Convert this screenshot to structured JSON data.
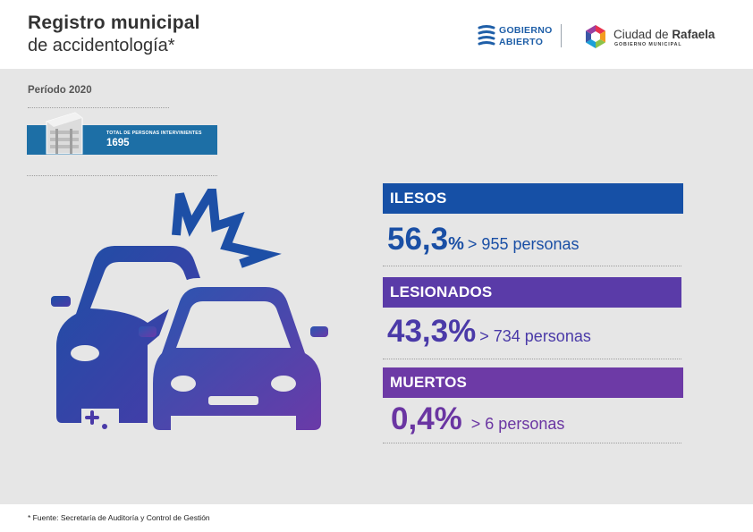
{
  "header": {
    "title_line1": "Registro municipal",
    "title_line2": "de accidentología*",
    "gobierno_abierto_logo": {
      "line1": "GOBIERNO",
      "line2": "ABIERTO",
      "color": "#1f5fa8"
    },
    "rafaela_logo": {
      "name_regular": "Ciudad de ",
      "name_bold": "Rafaela",
      "subtitle": "GOBIERNO MUNICIPAL"
    }
  },
  "main": {
    "period": "Período 2020",
    "total": {
      "label": "TOTAL DE PERSONAS INTERVINIENTES",
      "value": "1695",
      "color": "#1d6fa6"
    },
    "illustration": {
      "icon": "car-crash-icon",
      "colors": [
        "#1f4fa5",
        "#6a3aa8"
      ]
    }
  },
  "stats": [
    {
      "label": "ILESOS",
      "percent": "56,3",
      "persons": "> 955 personas",
      "bar_color": "#1650a6",
      "text_color": "#1a4fa5"
    },
    {
      "label": "LESIONADOS",
      "percent": "43,3%",
      "persons": "> 734 personas",
      "bar_color": "#5a3ba8",
      "text_color": "#4a3aa8"
    },
    {
      "label": "MUERTOS",
      "percent": "0,4%",
      "persons": "> 6 personas",
      "bar_color": "#6d3aa6",
      "text_color": "#6a35a2"
    }
  ],
  "stats_percent_sign": "%",
  "footer": {
    "source": "* Fuente:  Secretaría de Auditoría y Control de Gestión"
  }
}
